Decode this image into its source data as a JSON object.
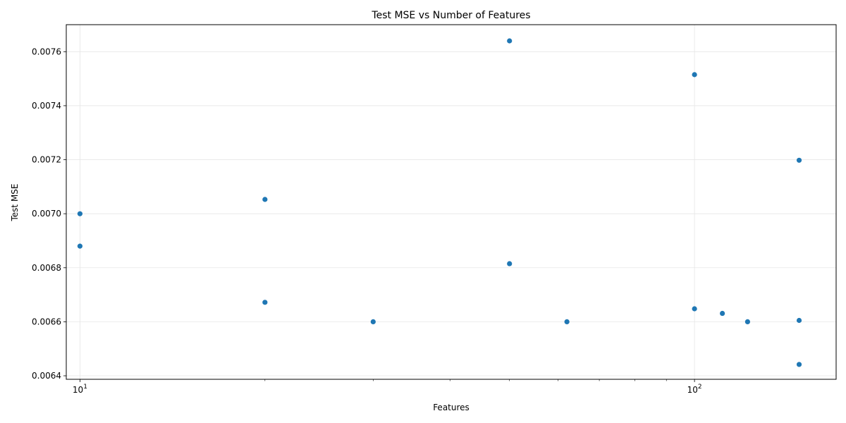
{
  "chart_data": {
    "type": "scatter",
    "title": "Test MSE vs Number of Features",
    "xlabel": "Features",
    "ylabel": "Test MSE",
    "x_scale": "log",
    "xlim": [
      9.5,
      170
    ],
    "ylim": [
      0.006387,
      0.0077
    ],
    "x_major_ticks": [
      {
        "value": 10,
        "base": "10",
        "exp": "1"
      },
      {
        "value": 100,
        "base": "10",
        "exp": "2"
      }
    ],
    "x_minor_ticks": [
      20,
      30,
      40,
      50,
      60,
      70,
      80,
      90
    ],
    "y_ticks": [
      0.0064,
      0.0066,
      0.0068,
      0.007,
      0.0072,
      0.0074,
      0.0076
    ],
    "y_tick_labels": [
      "0.0064",
      "0.0066",
      "0.0068",
      "0.0070",
      "0.0072",
      "0.0074",
      "0.0076"
    ],
    "grid": true,
    "marker_color": "#1f77b4",
    "points": [
      {
        "x": 10,
        "y": 0.007
      },
      {
        "x": 10,
        "y": 0.00688
      },
      {
        "x": 20,
        "y": 0.007053
      },
      {
        "x": 20,
        "y": 0.006672
      },
      {
        "x": 30,
        "y": 0.0066
      },
      {
        "x": 50,
        "y": 0.00764
      },
      {
        "x": 50,
        "y": 0.006815
      },
      {
        "x": 62,
        "y": 0.0066
      },
      {
        "x": 100,
        "y": 0.007515
      },
      {
        "x": 100,
        "y": 0.006648
      },
      {
        "x": 111,
        "y": 0.006631
      },
      {
        "x": 122,
        "y": 0.0066
      },
      {
        "x": 148,
        "y": 0.007198
      },
      {
        "x": 148,
        "y": 0.006605
      },
      {
        "x": 148,
        "y": 0.006442
      }
    ]
  }
}
